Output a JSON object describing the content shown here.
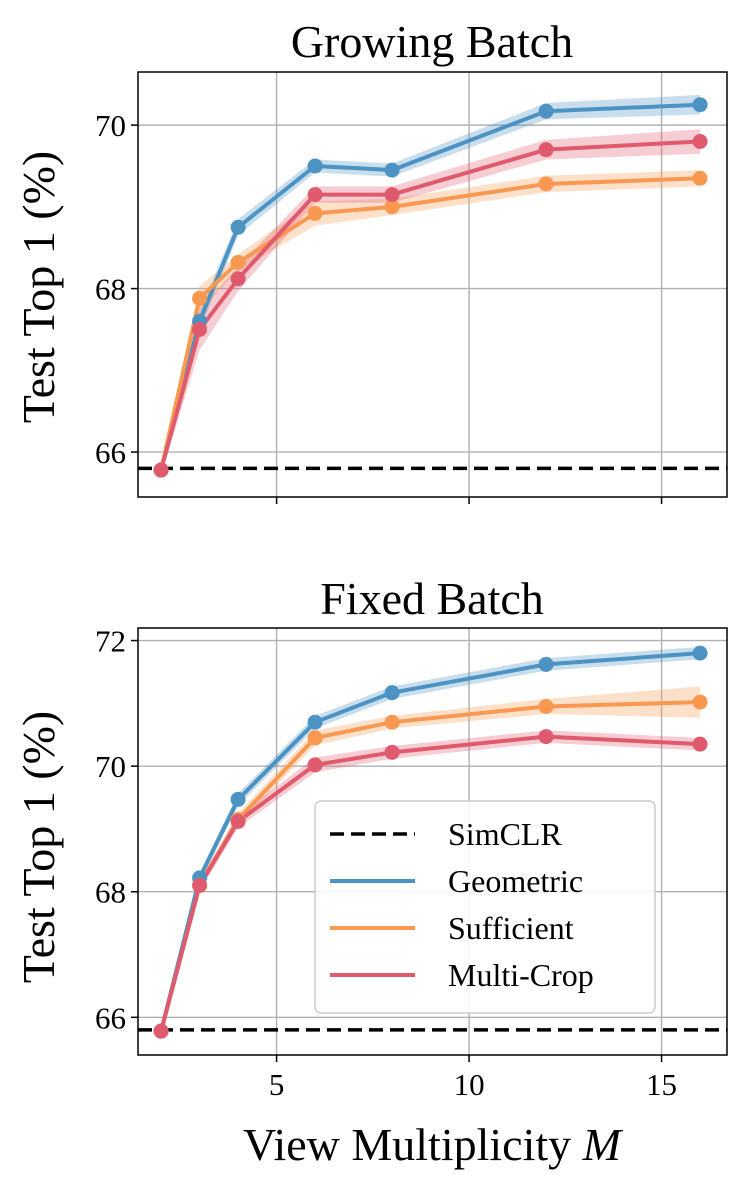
{
  "chart_data": [
    {
      "type": "line",
      "title": "Growing Batch",
      "xlabel": "",
      "ylabel": "Test Top 1 (%)",
      "xlim": [
        1.4,
        16.7
      ],
      "ylim": [
        65.45,
        70.65
      ],
      "xticks": [
        5,
        10,
        15
      ],
      "yticks": [
        66,
        68,
        70
      ],
      "ytick_labels": [
        "66",
        "68",
        "70"
      ],
      "show_x_tick_labels": false,
      "grid": true,
      "baseline": {
        "name": "SimCLR",
        "value": 65.8,
        "color": "#000000"
      },
      "series": [
        {
          "name": "Geometric",
          "color": "#4c93c3",
          "x": [
            2,
            3,
            4,
            6,
            8,
            12,
            16
          ],
          "y": [
            65.78,
            67.6,
            68.75,
            69.5,
            69.45,
            70.17,
            70.25
          ],
          "ci": [
            0.05,
            0.12,
            0.1,
            0.08,
            0.08,
            0.1,
            0.12
          ]
        },
        {
          "name": "Sufficient",
          "color": "#f89851",
          "x": [
            2,
            3,
            4,
            6,
            8,
            12,
            16
          ],
          "y": [
            65.78,
            67.88,
            68.32,
            68.92,
            69.0,
            69.28,
            69.35
          ],
          "ci": [
            0.05,
            0.15,
            0.1,
            0.15,
            0.1,
            0.1,
            0.1
          ]
        },
        {
          "name": "Multi-Crop",
          "color": "#e05a6d",
          "x": [
            2,
            3,
            4,
            6,
            8,
            12,
            16
          ],
          "y": [
            65.78,
            67.5,
            68.12,
            69.15,
            69.15,
            69.7,
            69.8
          ],
          "ci": [
            0.05,
            0.25,
            0.15,
            0.1,
            0.1,
            0.12,
            0.15
          ]
        }
      ]
    },
    {
      "type": "line",
      "title": "Fixed Batch",
      "xlabel": "View Multiplicity M",
      "xlabel_main": "View Multiplicity ",
      "xlabel_var": "M",
      "ylabel": "Test Top 1 (%)",
      "xlim": [
        1.4,
        16.7
      ],
      "ylim": [
        65.4,
        72.2
      ],
      "xticks": [
        5,
        10,
        15
      ],
      "xtick_labels": [
        "5",
        "10",
        "15"
      ],
      "yticks": [
        66,
        68,
        70,
        72
      ],
      "ytick_labels": [
        "66",
        "68",
        "70",
        "72"
      ],
      "show_x_tick_labels": true,
      "grid": true,
      "baseline": {
        "name": "SimCLR",
        "value": 65.8,
        "color": "#000000"
      },
      "series": [
        {
          "name": "Geometric",
          "color": "#4c93c3",
          "x": [
            2,
            3,
            4,
            6,
            8,
            12,
            16
          ],
          "y": [
            65.78,
            68.22,
            69.47,
            70.7,
            71.17,
            71.62,
            71.8
          ],
          "ci": [
            0.05,
            0.08,
            0.1,
            0.1,
            0.1,
            0.1,
            0.1
          ]
        },
        {
          "name": "Sufficient",
          "color": "#f89851",
          "x": [
            2,
            3,
            4,
            6,
            8,
            12,
            16
          ],
          "y": [
            65.78,
            68.1,
            69.15,
            70.45,
            70.7,
            70.95,
            71.02
          ],
          "ci": [
            0.05,
            0.08,
            0.1,
            0.12,
            0.1,
            0.12,
            0.25
          ]
        },
        {
          "name": "Multi-Crop",
          "color": "#e05a6d",
          "x": [
            2,
            3,
            4,
            6,
            8,
            12,
            16
          ],
          "y": [
            65.78,
            68.1,
            69.12,
            70.02,
            70.22,
            70.47,
            70.35
          ],
          "ci": [
            0.05,
            0.08,
            0.1,
            0.12,
            0.1,
            0.1,
            0.1
          ]
        }
      ],
      "legend": {
        "placement": "bottom-right",
        "entries": [
          {
            "name": "SimCLR",
            "color": "#000000",
            "style": "dashed"
          },
          {
            "name": "Geometric",
            "color": "#4c93c3",
            "style": "solid"
          },
          {
            "name": "Sufficient",
            "color": "#f89851",
            "style": "solid"
          },
          {
            "name": "Multi-Crop",
            "color": "#e05a6d",
            "style": "solid"
          }
        ]
      }
    }
  ]
}
